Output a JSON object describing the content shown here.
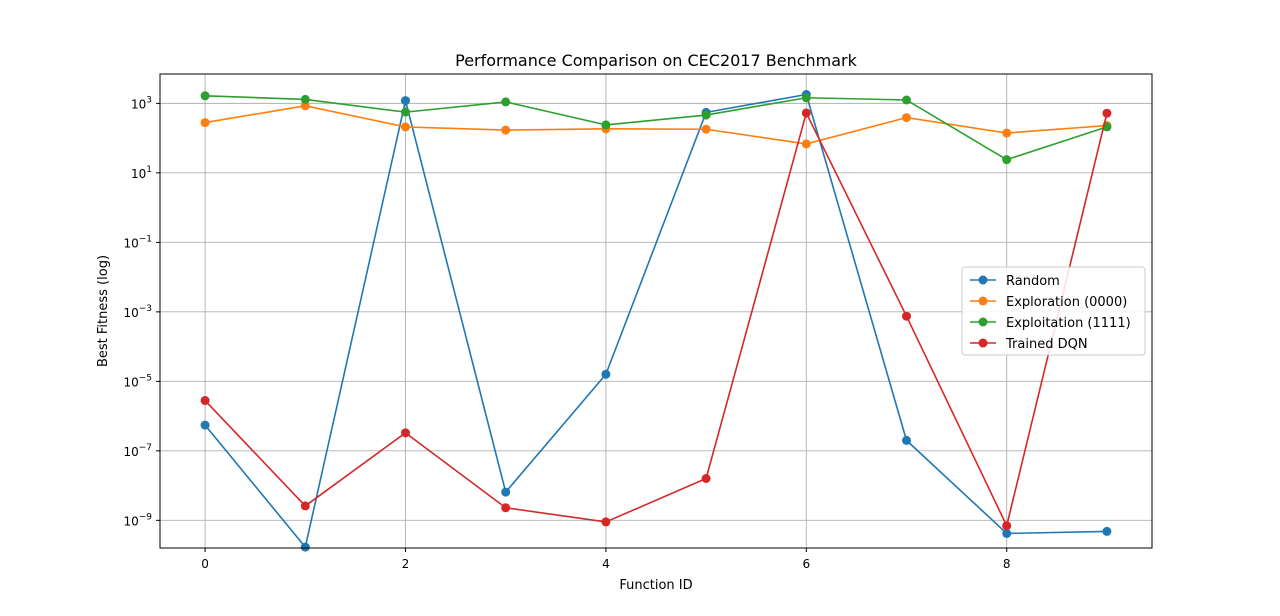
{
  "chart_data": {
    "type": "line",
    "title": "Performance Comparison on CEC2017 Benchmark",
    "xlabel": "Function ID",
    "ylabel": "Best Fitness (log)",
    "yscale": "log",
    "grid": true,
    "legend_position": "center-right",
    "xlim": [
      -0.45,
      9.45
    ],
    "ylim": [
      1.6e-10,
      7000
    ],
    "x_ticks": [
      0,
      2,
      4,
      6,
      8
    ],
    "x_tick_labels": [
      "0",
      "2",
      "4",
      "6",
      "8"
    ],
    "y_ticks": [
      1e-09,
      1e-07,
      1e-05,
      0.001,
      0.1,
      10,
      1000
    ],
    "y_tick_labels": [
      {
        "base": "10",
        "exp": "−9"
      },
      {
        "base": "10",
        "exp": "−7"
      },
      {
        "base": "10",
        "exp": "−5"
      },
      {
        "base": "10",
        "exp": "−3"
      },
      {
        "base": "10",
        "exp": "−1"
      },
      {
        "base": "10",
        "exp": "1"
      },
      {
        "base": "10",
        "exp": "3"
      }
    ],
    "x": [
      0,
      1,
      2,
      3,
      4,
      5,
      6,
      7,
      8,
      9
    ],
    "series": [
      {
        "name": "Random",
        "color": "#1f77b4",
        "values": [
          5.5e-07,
          1.7e-10,
          1200,
          6.5e-09,
          1.6e-05,
          550,
          1800,
          2e-07,
          4.2e-10,
          4.8e-10
        ]
      },
      {
        "name": "Exploration (0000)",
        "color": "#ff7f0e",
        "values": [
          280,
          850,
          210,
          170,
          185,
          180,
          68,
          390,
          140,
          230
        ]
      },
      {
        "name": "Exploitation (1111)",
        "color": "#2ca02c",
        "values": [
          1650,
          1300,
          560,
          1100,
          240,
          460,
          1450,
          1250,
          24,
          210
        ]
      },
      {
        "name": "Trained DQN",
        "color": "#d62728",
        "values": [
          2.8e-06,
          2.6e-09,
          3.3e-07,
          2.3e-09,
          9e-10,
          1.6e-08,
          530,
          0.00075,
          7e-10,
          520
        ]
      }
    ]
  }
}
